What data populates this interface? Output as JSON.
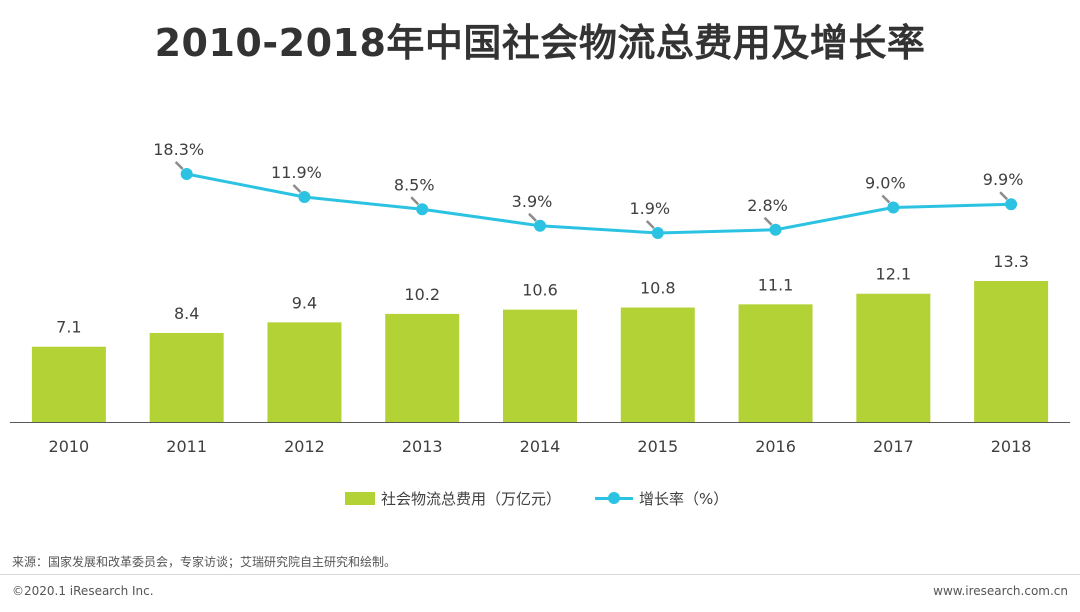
{
  "chart_data": {
    "type": "bar+line",
    "title": "2010-2018年中国社会物流总费用及增长率",
    "categories": [
      "2010",
      "2011",
      "2012",
      "2013",
      "2014",
      "2015",
      "2016",
      "2017",
      "2018"
    ],
    "series": [
      {
        "name": "社会物流总费用（万亿元）",
        "type": "bar",
        "values": [
          7.1,
          8.4,
          9.4,
          10.2,
          10.6,
          10.8,
          11.1,
          12.1,
          13.3
        ],
        "labels": [
          "7.1",
          "8.4",
          "9.4",
          "10.2",
          "10.6",
          "10.8",
          "11.1",
          "12.1",
          "13.3"
        ],
        "color": "#b2d235"
      },
      {
        "name": "增长率（%）",
        "type": "line",
        "values": [
          null,
          18.3,
          11.9,
          8.5,
          3.9,
          1.9,
          2.8,
          9.0,
          9.9
        ],
        "labels": [
          "",
          "18.3%",
          "11.9%",
          "8.5%",
          "3.9%",
          "1.9%",
          "2.8%",
          "9.0%",
          "9.9%"
        ],
        "color": "#2cc3e3"
      }
    ],
    "xlabel": "",
    "ylabel": "",
    "legend_position": "bottom-center"
  },
  "legend": {
    "bar_label": "社会物流总费用（万亿元）",
    "line_label": "增长率（%）"
  },
  "footer": {
    "source": "来源：国家发展和改革委员会，专家访谈；艾瑞研究院自主研究和绘制。",
    "copyright": "©2020.1 iResearch Inc.",
    "website": "www.iresearch.com.cn"
  },
  "colors": {
    "bar": "#b2d235",
    "line": "#2cc3e3",
    "leader": "#8c8c8c",
    "axis": "#595959"
  }
}
